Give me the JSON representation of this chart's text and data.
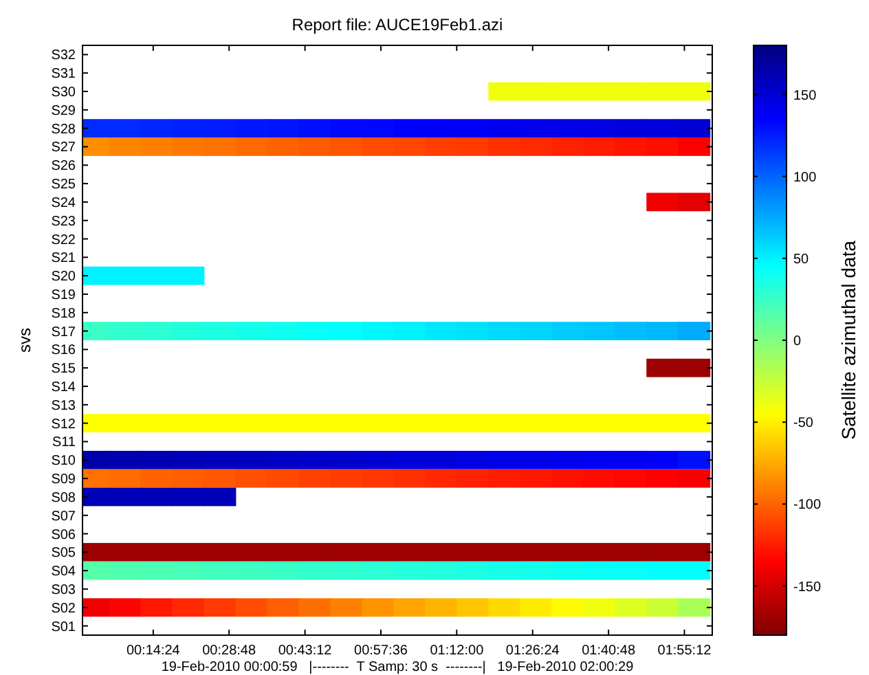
{
  "chart_data": {
    "type": "heatmap",
    "title": "Report file: AUCE19Feb1.azi",
    "xlabel": "19-Feb-2010 00:00:59   |--------  T Samp: 30 s  --------|   19-Feb-2010 02:00:29",
    "ylabel": "svs",
    "clabel": "Satellite azimuthal data",
    "x": [
      0.05,
      0.15,
      0.25,
      0.35,
      0.45,
      0.55,
      0.65,
      0.75,
      0.85,
      0.95,
      1.05,
      1.15,
      1.25,
      1.35,
      1.45,
      1.55,
      1.65,
      1.75,
      1.85,
      1.95
    ],
    "xlim": [
      0.0164,
      2.0081
    ],
    "xticks": [
      {
        "value": 0.24,
        "label": "00:14:24"
      },
      {
        "value": 0.48,
        "label": "00:28:48"
      },
      {
        "value": 0.72,
        "label": "00:43:12"
      },
      {
        "value": 0.96,
        "label": "00:57:36"
      },
      {
        "value": 1.2,
        "label": "01:12:00"
      },
      {
        "value": 1.44,
        "label": "01:26:24"
      },
      {
        "value": 1.68,
        "label": "01:40:48"
      },
      {
        "value": 1.92,
        "label": "01:55:12"
      }
    ],
    "y_categories": [
      "S32",
      "S31",
      "S30",
      "S29",
      "S28",
      "S27",
      "S26",
      "S25",
      "S24",
      "S23",
      "S22",
      "S21",
      "S20",
      "S19",
      "S18",
      "S17",
      "S16",
      "S15",
      "S14",
      "S13",
      "S12",
      "S11",
      "S10",
      "S09",
      "S08",
      "S07",
      "S06",
      "S05",
      "S04",
      "S03",
      "S02",
      "S01"
    ],
    "cells": [
      [
        null,
        null,
        null,
        null,
        null,
        null,
        null,
        null,
        null,
        null,
        null,
        null,
        null,
        null,
        null,
        null,
        null,
        null,
        null,
        null
      ],
      [
        null,
        null,
        null,
        null,
        null,
        null,
        null,
        null,
        null,
        null,
        null,
        null,
        null,
        null,
        null,
        null,
        null,
        null,
        null,
        null
      ],
      [
        null,
        null,
        null,
        null,
        null,
        null,
        null,
        null,
        null,
        null,
        null,
        null,
        null,
        -40,
        -40,
        -40,
        -40,
        -40,
        -40,
        -40
      ],
      [
        null,
        null,
        null,
        null,
        null,
        null,
        null,
        null,
        null,
        null,
        null,
        null,
        null,
        null,
        null,
        null,
        null,
        null,
        null,
        null
      ],
      [
        120,
        120,
        122,
        124,
        125,
        127,
        128,
        130,
        132,
        133,
        135,
        137,
        138,
        140,
        142,
        143,
        145,
        147,
        148,
        150
      ],
      [
        -85,
        -88,
        -90,
        -93,
        -95,
        -98,
        -100,
        -103,
        -105,
        -108,
        -110,
        -113,
        -115,
        -118,
        -120,
        -123,
        -125,
        -128,
        -130,
        -135
      ],
      [
        null,
        null,
        null,
        null,
        null,
        null,
        null,
        null,
        null,
        null,
        null,
        null,
        null,
        null,
        null,
        null,
        null,
        null,
        null,
        null
      ],
      [
        null,
        null,
        null,
        null,
        null,
        null,
        null,
        null,
        null,
        null,
        null,
        null,
        null,
        null,
        null,
        null,
        null,
        null,
        null,
        null
      ],
      [
        null,
        null,
        null,
        null,
        null,
        null,
        null,
        null,
        null,
        null,
        null,
        null,
        null,
        null,
        null,
        null,
        null,
        null,
        -140,
        -145
      ],
      [
        null,
        null,
        null,
        null,
        null,
        null,
        null,
        null,
        null,
        null,
        null,
        null,
        null,
        null,
        null,
        null,
        null,
        null,
        null,
        null
      ],
      [
        null,
        null,
        null,
        null,
        null,
        null,
        null,
        null,
        null,
        null,
        null,
        null,
        null,
        null,
        null,
        null,
        null,
        null,
        null,
        null
      ],
      [
        null,
        null,
        null,
        null,
        null,
        null,
        null,
        null,
        null,
        null,
        null,
        null,
        null,
        null,
        null,
        null,
        null,
        null,
        null,
        null
      ],
      [
        50,
        50,
        50,
        50,
        null,
        null,
        null,
        null,
        null,
        null,
        null,
        null,
        null,
        null,
        null,
        null,
        null,
        null,
        null,
        null
      ],
      [
        null,
        null,
        null,
        null,
        null,
        null,
        null,
        null,
        null,
        null,
        null,
        null,
        null,
        null,
        null,
        null,
        null,
        null,
        null,
        null
      ],
      [
        null,
        null,
        null,
        null,
        null,
        null,
        null,
        null,
        null,
        null,
        null,
        null,
        null,
        null,
        null,
        null,
        null,
        null,
        null,
        null
      ],
      [
        25,
        28,
        30,
        33,
        35,
        38,
        40,
        43,
        45,
        48,
        50,
        53,
        55,
        58,
        60,
        63,
        65,
        68,
        70,
        75
      ],
      [
        null,
        null,
        null,
        null,
        null,
        null,
        null,
        null,
        null,
        null,
        null,
        null,
        null,
        null,
        null,
        null,
        null,
        null,
        null,
        null
      ],
      [
        null,
        null,
        null,
        null,
        null,
        null,
        null,
        null,
        null,
        null,
        null,
        null,
        null,
        null,
        null,
        null,
        null,
        null,
        -170,
        -170
      ],
      [
        null,
        null,
        null,
        null,
        null,
        null,
        null,
        null,
        null,
        null,
        null,
        null,
        null,
        null,
        null,
        null,
        null,
        null,
        null,
        null
      ],
      [
        null,
        null,
        null,
        null,
        null,
        null,
        null,
        null,
        null,
        null,
        null,
        null,
        null,
        null,
        null,
        null,
        null,
        null,
        null,
        null
      ],
      [
        -45,
        -45,
        -45,
        -45,
        -45,
        -45,
        -45,
        -45,
        -45,
        -45,
        -45,
        -45,
        -45,
        -45,
        -45,
        -45,
        -45,
        -45,
        -45,
        -45
      ],
      [
        null,
        null,
        null,
        null,
        null,
        null,
        null,
        null,
        null,
        null,
        null,
        null,
        null,
        null,
        null,
        null,
        null,
        null,
        null,
        null
      ],
      [
        165,
        163,
        162,
        160,
        158,
        157,
        155,
        153,
        152,
        150,
        148,
        147,
        145,
        143,
        142,
        140,
        138,
        137,
        135,
        130
      ],
      [
        -95,
        -97,
        -100,
        -102,
        -104,
        -107,
        -109,
        -112,
        -114,
        -116,
        -118,
        -121,
        -123,
        -125,
        -127,
        -129,
        -131,
        -133,
        -135,
        -138
      ],
      [
        160,
        160,
        160,
        160,
        160,
        null,
        null,
        null,
        null,
        null,
        null,
        null,
        null,
        null,
        null,
        null,
        null,
        null,
        null,
        null
      ],
      [
        null,
        null,
        null,
        null,
        null,
        null,
        null,
        null,
        null,
        null,
        null,
        null,
        null,
        null,
        null,
        null,
        null,
        null,
        null,
        null
      ],
      [
        null,
        null,
        null,
        null,
        null,
        null,
        null,
        null,
        null,
        null,
        null,
        null,
        null,
        null,
        null,
        null,
        null,
        null,
        null,
        null
      ],
      [
        -170,
        -170,
        -170,
        -170,
        -170,
        -170,
        -170,
        -170,
        -170,
        -170,
        -170,
        -170,
        -170,
        -170,
        -170,
        -170,
        -170,
        -170,
        -170,
        -170
      ],
      [
        15,
        17,
        18,
        20,
        22,
        23,
        25,
        27,
        28,
        30,
        32,
        33,
        35,
        37,
        38,
        40,
        42,
        43,
        45,
        45
      ],
      [
        null,
        null,
        null,
        null,
        null,
        null,
        null,
        null,
        null,
        null,
        null,
        null,
        null,
        null,
        null,
        null,
        null,
        null,
        null,
        null
      ],
      [
        -140,
        -134,
        -127,
        -121,
        -115,
        -108,
        -102,
        -96,
        -90,
        -83,
        -77,
        -71,
        -65,
        -58,
        -52,
        -46,
        -40,
        -33,
        -27,
        -15
      ],
      [
        null,
        null,
        null,
        null,
        null,
        null,
        null,
        null,
        null,
        null,
        null,
        null,
        null,
        null,
        null,
        null,
        null,
        null,
        null,
        null
      ]
    ],
    "clim": [
      -180,
      180
    ],
    "cticks": [
      -150,
      -100,
      -50,
      0,
      50,
      100,
      150
    ]
  }
}
